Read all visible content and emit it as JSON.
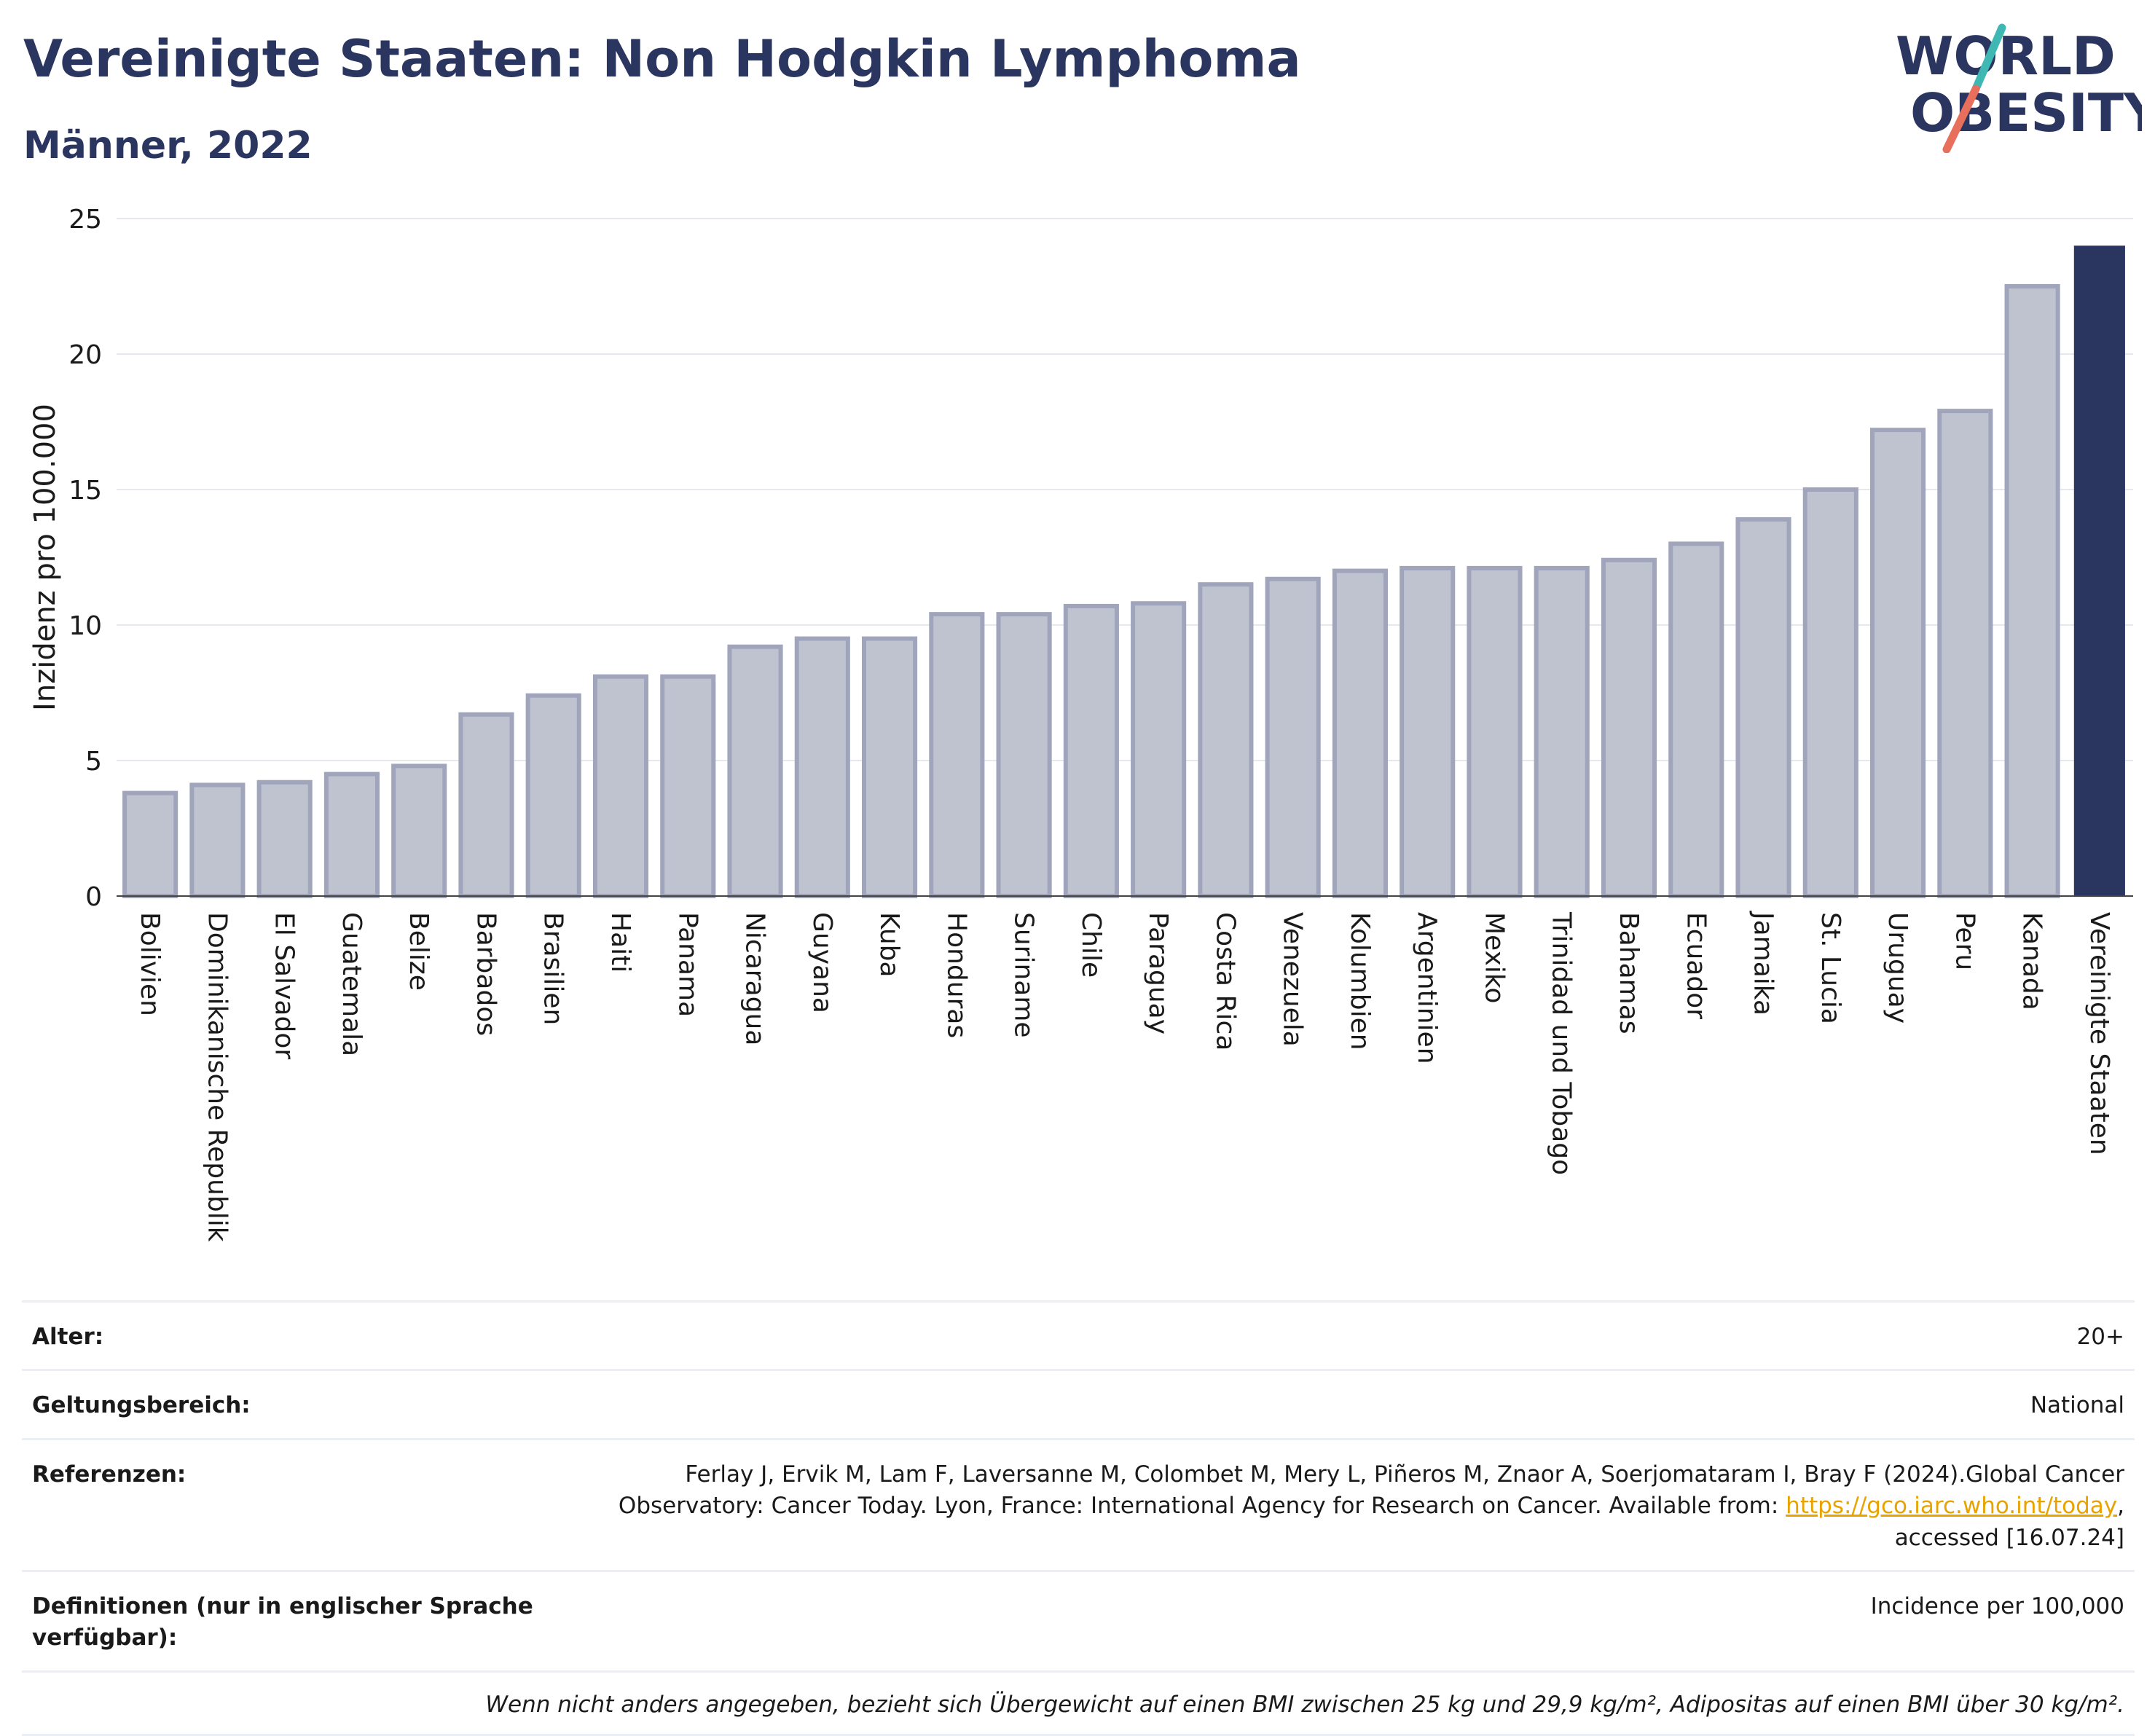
{
  "header": {
    "title": "Vereinigte Staaten: Non Hodgkin Lymphoma",
    "subtitle": "Männer, 2022",
    "logo_top": "WORLD",
    "logo_bottom": "OBESITY"
  },
  "chart_data": {
    "type": "bar",
    "ylabel": "Inzidenz pro 100.000",
    "ylim": [
      0,
      25
    ],
    "yticks": [
      0,
      5,
      10,
      15,
      20,
      25
    ],
    "grid": true,
    "categories": [
      "Bolivien",
      "Dominikanische Republik",
      "El Salvador",
      "Guatemala",
      "Belize",
      "Barbados",
      "Brasilien",
      "Haiti",
      "Panama",
      "Nicaragua",
      "Guyana",
      "Kuba",
      "Honduras",
      "Suriname",
      "Chile",
      "Paraguay",
      "Costa Rica",
      "Venezuela",
      "Kolumbien",
      "Argentinien",
      "Mexiko",
      "Trinidad und Tobago",
      "Bahamas",
      "Ecuador",
      "Jamaika",
      "St. Lucia",
      "Uruguay",
      "Peru",
      "Kanada",
      "Vereinigte Staaten"
    ],
    "values": [
      3.8,
      4.1,
      4.2,
      4.5,
      4.8,
      6.7,
      7.4,
      8.1,
      8.1,
      9.2,
      9.5,
      9.5,
      10.4,
      10.4,
      10.7,
      10.8,
      11.5,
      11.7,
      12.0,
      12.1,
      12.1,
      12.1,
      12.4,
      13.0,
      13.9,
      15.0,
      17.2,
      17.9,
      22.5,
      24.0
    ],
    "highlight": "Vereinigte Staaten",
    "colors": {
      "bar": "#bfc3d0",
      "bar_border": "#a0a5bc",
      "highlight": "#2b3660",
      "grid": "#e6e8ef"
    }
  },
  "meta": {
    "age_label": "Alter:",
    "age_value": "20+",
    "scope_label": "Geltungsbereich:",
    "scope_value": "National",
    "references_label": "Referenzen:",
    "references_text_1": "Ferlay J, Ervik M, Lam F, Laversanne M, Colombet M, Mery L, Piñeros M, Znaor A, Soerjomataram I, Bray F (2024).Global Cancer",
    "references_text_2": "Observatory: Cancer Today. Lyon, France: International Agency for Research on Cancer. Available from:",
    "references_link": "https://gco.iarc.who.int/today",
    "references_text_3": ",",
    "references_text_4": "accessed [16.07.24]",
    "definitions_label": "Definitionen (nur in englischer Sprache verfügbar):",
    "definitions_value": "Incidence per 100,000",
    "footnote": "Wenn nicht anders angegeben, bezieht sich Übergewicht auf einen BMI zwischen 25 kg und 29,9 kg/m², Adipositas auf einen BMI über 30 kg/m²."
  }
}
